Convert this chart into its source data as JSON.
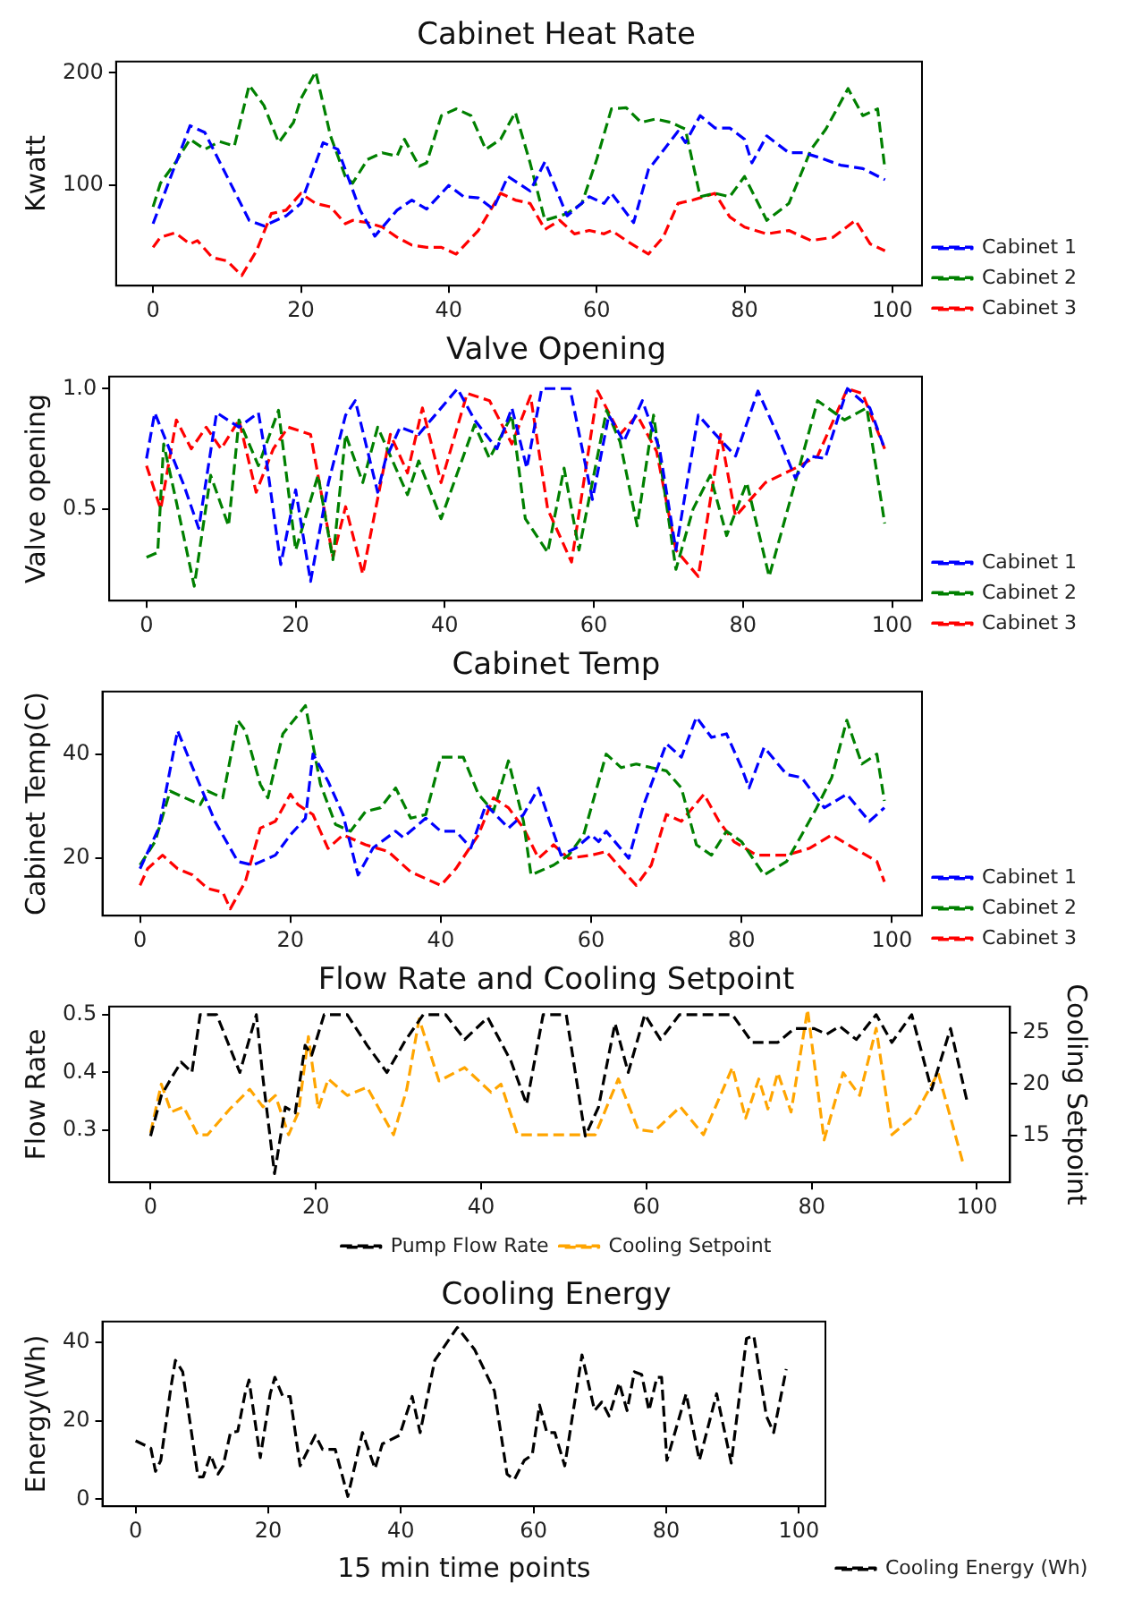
{
  "chart_data": [
    {
      "type": "line",
      "title": "Cabinet Heat Rate",
      "ylabel": "Kwatt",
      "xlim": [
        -5,
        104
      ],
      "xticks": [
        0,
        20,
        40,
        60,
        80,
        100
      ],
      "ylim": [
        11,
        210
      ],
      "yticks": [
        100,
        200
      ],
      "line_style": "dashed",
      "legend": "bottom right",
      "series": [
        {
          "name": "Cabinet 1",
          "color": "#0000ff",
          "x": [
            0,
            5,
            7,
            10,
            13,
            15,
            18,
            20,
            23,
            25,
            28,
            30,
            33,
            35,
            37,
            40,
            42,
            44,
            46,
            48,
            51,
            53,
            56,
            59,
            61,
            62,
            65,
            67,
            71,
            72,
            74,
            76,
            78,
            80,
            81,
            83,
            86,
            88,
            90,
            93,
            96,
            99
          ],
          "values": [
            66,
            153,
            147,
            108,
            69,
            64,
            73,
            84,
            138,
            132,
            78,
            55,
            78,
            87,
            79,
            100,
            90,
            89,
            79,
            108,
            95,
            121,
            73,
            90,
            84,
            93,
            67,
            114,
            148,
            138,
            162,
            151,
            151,
            141,
            120,
            144,
            129,
            129,
            125,
            118,
            115,
            105
          ]
        },
        {
          "name": "Cabinet 2",
          "color": "#008000",
          "x": [
            0,
            1,
            3,
            5,
            7,
            9,
            11,
            13,
            15,
            17,
            19,
            20,
            22,
            24,
            26,
            27,
            29,
            31,
            33,
            34,
            36,
            37,
            39,
            41,
            43,
            45,
            47,
            49,
            51,
            53,
            56,
            58,
            60,
            62,
            64,
            66,
            68,
            70,
            72,
            74,
            76,
            78,
            80,
            83,
            86,
            89,
            91,
            94,
            96,
            98,
            99
          ],
          "values": [
            81,
            102,
            120,
            141,
            132,
            139,
            135,
            189,
            171,
            138,
            156,
            177,
            201,
            144,
            108,
            102,
            123,
            129,
            126,
            141,
            117,
            120,
            162,
            168,
            162,
            132,
            141,
            165,
            120,
            69,
            75,
            84,
            123,
            168,
            169,
            156,
            159,
            156,
            150,
            90,
            93,
            90,
            108,
            69,
            84,
            132,
            150,
            186,
            162,
            168,
            114
          ]
        },
        {
          "name": "Cabinet 3",
          "color": "#ff0000",
          "x": [
            0,
            1,
            3,
            5,
            6,
            8,
            10,
            12,
            14,
            16,
            18,
            20,
            22,
            24,
            26,
            27,
            29,
            31,
            33,
            35,
            37,
            39,
            41,
            44,
            47,
            49,
            51,
            53,
            55,
            57,
            59,
            61,
            62,
            64,
            67,
            69,
            71,
            73,
            76,
            78,
            80,
            83,
            86,
            89,
            92,
            95,
            97,
            99
          ],
          "values": [
            45,
            54,
            58,
            48,
            51,
            36,
            33,
            20,
            42,
            75,
            78,
            93,
            84,
            81,
            66,
            69,
            67,
            63,
            54,
            47,
            45,
            45,
            39,
            60,
            93,
            87,
            84,
            61,
            69,
            57,
            60,
            57,
            60,
            51,
            39,
            54,
            84,
            87,
            93,
            72,
            63,
            57,
            60,
            51,
            54,
            69,
            48,
            42
          ]
        }
      ]
    },
    {
      "type": "line",
      "title": "Valve Opening",
      "ylabel": "Valve opening",
      "xlim": [
        -5,
        104
      ],
      "xticks": [
        0,
        20,
        40,
        60,
        80,
        100
      ],
      "ylim": [
        0.12,
        1.05
      ],
      "yticks": [
        0.5,
        {
          "value": 1,
          "label": "1.0"
        }
      ],
      "line_style": "dashed",
      "legend": "bottom right",
      "series": [
        {
          "name": "Cabinet 1",
          "color": "#0000ff",
          "x": [
            0,
            1.1,
            5,
            7,
            9.4,
            12.4,
            15,
            16,
            18,
            20,
            22,
            24.4,
            26.7,
            28,
            31,
            32,
            34,
            36.5,
            38.7,
            41.7,
            44,
            47,
            49,
            51,
            53,
            56.8,
            59.8,
            62,
            64,
            66.5,
            68.8,
            71,
            74,
            76.3,
            79,
            82,
            84.6,
            87,
            89,
            91,
            94,
            97,
            99
          ],
          "values": [
            0.71,
            0.9,
            0.6,
            0.42,
            0.9,
            0.84,
            0.9,
            0.72,
            0.27,
            0.58,
            0.2,
            0.61,
            0.89,
            0.95,
            0.57,
            0.7,
            0.84,
            0.81,
            0.89,
            1.0,
            0.87,
            0.75,
            0.92,
            0.67,
            1.0,
            1.0,
            0.54,
            0.89,
            0.78,
            0.95,
            0.75,
            0.33,
            0.89,
            0.81,
            0.72,
            0.99,
            0.81,
            0.63,
            0.72,
            0.71,
            1.0,
            0.92,
            0.75
          ]
        },
        {
          "name": "Cabinet 2",
          "color": "#008000",
          "x": [
            0,
            1.5,
            2.3,
            4,
            6.4,
            8.6,
            11,
            12.4,
            15,
            17.7,
            20,
            23,
            25,
            26.7,
            29,
            31,
            35,
            36.5,
            39.5,
            44,
            46,
            49,
            50.8,
            53.8,
            56,
            58,
            61.7,
            63.5,
            65.8,
            68,
            71,
            73.3,
            75.6,
            77.8,
            80.5,
            83.5,
            86,
            90,
            93.6,
            96.6,
            99
          ],
          "values": [
            0.3,
            0.32,
            0.77,
            0.53,
            0.18,
            0.64,
            0.43,
            0.87,
            0.68,
            0.91,
            0.33,
            0.64,
            0.29,
            0.81,
            0.61,
            0.84,
            0.56,
            0.7,
            0.46,
            0.85,
            0.71,
            0.89,
            0.46,
            0.32,
            0.67,
            0.33,
            0.91,
            0.78,
            0.43,
            0.89,
            0.25,
            0.5,
            0.64,
            0.39,
            0.61,
            0.22,
            0.5,
            0.95,
            0.87,
            0.92,
            0.44
          ]
        },
        {
          "name": "Cabinet 3",
          "color": "#ff0000",
          "x": [
            0,
            1.9,
            4,
            6,
            8,
            10,
            12.4,
            14.7,
            17,
            19,
            22,
            25,
            26.7,
            29,
            32.7,
            35,
            37,
            39.5,
            43,
            46,
            49,
            51.5,
            53.8,
            57,
            60.5,
            63.5,
            65.8,
            68.4,
            71,
            74,
            77,
            79,
            83,
            87,
            90,
            94,
            96,
            99
          ],
          "values": [
            0.68,
            0.5,
            0.87,
            0.75,
            0.84,
            0.75,
            0.87,
            0.57,
            0.75,
            0.84,
            0.81,
            0.3,
            0.51,
            0.23,
            0.81,
            0.65,
            0.92,
            0.61,
            0.98,
            0.95,
            0.77,
            0.97,
            0.5,
            0.28,
            0.99,
            0.81,
            0.89,
            0.74,
            0.33,
            0.22,
            0.81,
            0.47,
            0.61,
            0.67,
            0.72,
            1.0,
            0.98,
            0.75
          ]
        }
      ]
    },
    {
      "type": "line",
      "title": "Cabinet Temp",
      "ylabel": "Cabinet Temp(C)",
      "xlim": [
        -5,
        104
      ],
      "xticks": [
        0,
        20,
        40,
        60,
        80,
        100
      ],
      "ylim": [
        9,
        52
      ],
      "yticks": [
        20,
        40
      ],
      "line_style": "dashed",
      "legend": "bottom right",
      "series": [
        {
          "name": "Cabinet 1",
          "color": "#0000ff",
          "x": [
            0,
            2.5,
            5,
            7,
            10,
            13,
            15,
            18,
            20,
            22,
            23,
            25,
            27,
            29,
            31,
            34,
            35,
            38,
            40,
            42,
            44,
            46,
            49,
            51,
            53,
            56,
            58,
            60,
            61,
            62,
            65,
            67,
            70,
            72,
            74,
            76,
            78,
            80,
            81,
            83,
            86,
            88,
            91,
            94,
            97,
            99
          ],
          "values": [
            18,
            25.8,
            44.5,
            37.4,
            27,
            19.4,
            18.7,
            20.6,
            24.5,
            27.7,
            40,
            34.8,
            28.4,
            16.8,
            22,
            25.2,
            24,
            27.7,
            25.2,
            25.2,
            22,
            30.3,
            25.8,
            28.4,
            33.5,
            20.6,
            22,
            24.5,
            23.2,
            25.2,
            20,
            30.3,
            42,
            39.4,
            47.1,
            43.2,
            43.9,
            37.4,
            33.5,
            41.3,
            36.1,
            35.5,
            29.7,
            32.3,
            27.1,
            29.7
          ]
        },
        {
          "name": "Cabinet 2",
          "color": "#008000",
          "x": [
            0,
            2,
            4,
            6,
            8,
            9,
            11,
            13,
            14,
            16,
            17,
            19,
            22,
            24,
            26,
            28,
            30,
            32,
            34,
            36,
            38,
            40,
            43,
            45,
            47,
            49,
            51,
            52,
            55,
            57,
            59,
            62,
            64,
            66,
            68,
            70,
            72,
            74,
            76,
            78,
            80,
            83,
            86,
            88,
            90,
            92,
            94,
            96,
            98,
            99
          ],
          "values": [
            18.7,
            23.2,
            32.9,
            31.6,
            30.3,
            32.9,
            31.6,
            46.5,
            44.5,
            34.2,
            31.6,
            43.9,
            49.3,
            34.2,
            26.5,
            25.2,
            29,
            29.7,
            33.5,
            27.7,
            28.4,
            39.4,
            39.4,
            32.3,
            29,
            38.7,
            27.1,
            16.8,
            18.7,
            20.6,
            24.5,
            40,
            37.4,
            38.1,
            37.4,
            36.8,
            33.5,
            22.6,
            20.6,
            25.2,
            23.2,
            16.8,
            19.4,
            24.5,
            29.7,
            35.5,
            46.5,
            38.1,
            40,
            31
          ]
        },
        {
          "name": "Cabinet 3",
          "color": "#ff0000",
          "x": [
            0,
            1,
            3,
            5,
            7,
            9,
            11,
            12,
            14,
            16,
            18,
            20,
            21,
            23,
            25,
            27,
            30,
            33,
            36,
            40,
            42,
            45,
            47,
            49,
            51,
            53,
            55,
            57,
            60,
            62,
            64,
            66,
            68,
            70,
            72,
            75,
            77,
            79,
            82,
            86,
            89,
            92,
            95,
            98,
            99
          ],
          "values": [
            14.8,
            18,
            20.6,
            18,
            16.8,
            14.2,
            13.5,
            10.3,
            15.5,
            25.8,
            27.1,
            32.3,
            30.3,
            28.4,
            21.9,
            24.5,
            22.6,
            21.3,
            17.4,
            14.8,
            18,
            24.5,
            31.6,
            29.7,
            25.8,
            20,
            22.6,
            20,
            20.6,
            21.3,
            18,
            14.8,
            18.7,
            28.4,
            27.1,
            32.3,
            27.1,
            23.2,
            20.6,
            20.6,
            21.9,
            24.5,
            21.9,
            19.4,
            15.5
          ]
        }
      ]
    },
    {
      "type": "line",
      "title": "Flow Rate and Cooling Setpoint",
      "ylabel": "Flow Rate",
      "y2label": "Cooling Setpoint",
      "xlim": [
        -5,
        104
      ],
      "xticks": [
        0,
        20,
        40,
        60,
        80,
        100
      ],
      "ylim": [
        0.21,
        0.514
      ],
      "yticks": [
        0.3,
        0.4,
        0.5
      ],
      "y2lim": [
        10.5,
        27.5
      ],
      "y2ticks": [
        15,
        20,
        25
      ],
      "line_style": "dashed",
      "legend": "bottom",
      "series": [
        {
          "name": "Pump Flow Rate",
          "color": "#000000",
          "x": [
            0,
            1.3,
            2.5,
            3.7,
            5,
            6,
            8,
            10.8,
            12.8,
            13.6,
            15,
            16.3,
            17.5,
            18.7,
            19.5,
            21,
            23.8,
            26.2,
            28.6,
            30.9,
            33,
            35.7,
            38,
            40.8,
            43.6,
            45.5,
            47.5,
            50.3,
            52.6,
            54.2,
            56.2,
            57.8,
            59.8,
            61.7,
            64,
            70.4,
            72.8,
            75.9,
            77.9,
            80.3,
            81.8,
            83.4,
            85.4,
            87.8,
            89.7,
            92.1,
            94.5,
            96.8,
            98.8
          ],
          "values": [
            0.29,
            0.36,
            0.39,
            0.418,
            0.4,
            0.5,
            0.5,
            0.4,
            0.5,
            0.39,
            0.225,
            0.34,
            0.33,
            0.447,
            0.43,
            0.5,
            0.5,
            0.447,
            0.4,
            0.457,
            0.5,
            0.5,
            0.457,
            0.495,
            0.42,
            0.345,
            0.5,
            0.5,
            0.29,
            0.34,
            0.485,
            0.4,
            0.5,
            0.457,
            0.5,
            0.5,
            0.452,
            0.452,
            0.476,
            0.476,
            0.466,
            0.48,
            0.457,
            0.5,
            0.452,
            0.5,
            0.37,
            0.476,
            0.35
          ]
        },
        {
          "name": "Cooling Setpoint",
          "color": "#ffa500",
          "axis": "y2",
          "x": [
            0,
            1.3,
            2.5,
            4,
            5.7,
            6.9,
            9.6,
            12,
            13.6,
            15.1,
            16.7,
            17.9,
            19.1,
            20.3,
            21.5,
            23.8,
            26.2,
            29.4,
            31,
            32.5,
            34.9,
            38,
            41.2,
            42.4,
            44.4,
            48.3,
            53.8,
            56.6,
            59,
            60.9,
            64.1,
            66.9,
            70.4,
            72,
            73.6,
            74.7,
            75.9,
            77.5,
            79.5,
            81.5,
            83.8,
            85.8,
            87.8,
            89.7,
            92.5,
            95.3,
            98.4
          ],
          "values": [
            15.3,
            20,
            17.3,
            17.8,
            15.1,
            15.1,
            17.6,
            19.5,
            17.8,
            18.9,
            15.1,
            17.3,
            24.6,
            17.6,
            20.5,
            18.9,
            19.7,
            15.1,
            19.5,
            26.3,
            20.3,
            21.6,
            19.2,
            20,
            15.1,
            15.1,
            15.1,
            20.5,
            15.6,
            15.4,
            17.8,
            15.1,
            21.6,
            16.7,
            20.5,
            17.6,
            21.1,
            17.3,
            27.2,
            14.6,
            21.1,
            18.9,
            25.4,
            15.1,
            17,
            21.1,
            12.1
          ]
        }
      ]
    },
    {
      "type": "line",
      "title": "Cooling Energy",
      "xlabel": "15 min time points",
      "ylabel": "Energy(Wh)",
      "xlim": [
        -5,
        104
      ],
      "xticks": [
        0,
        20,
        40,
        60,
        80,
        100
      ],
      "ylim": [
        -1.8,
        45.3
      ],
      "yticks": [
        0,
        20,
        40
      ],
      "line_style": "dashed",
      "legend": "bottom right",
      "series": [
        {
          "name": "Cooling Energy (Wh)",
          "color": "#000000",
          "x": [
            0,
            2.3,
            3,
            3.8,
            5.3,
            6,
            7.1,
            9.4,
            10.2,
            11.3,
            12.4,
            13.2,
            14.3,
            15.4,
            16.5,
            17.1,
            18.8,
            20.3,
            21,
            22.2,
            23.3,
            24.8,
            27.1,
            28.2,
            30.1,
            32,
            34.2,
            36.1,
            37.2,
            39.8,
            41.7,
            42.9,
            45.1,
            48.5,
            51.1,
            54.1,
            56,
            57.1,
            58.6,
            59.8,
            60.9,
            62,
            63.2,
            64.7,
            67.3,
            69.2,
            70.3,
            71.4,
            72.9,
            74.1,
            75.2,
            76.3,
            77.4,
            78.6,
            79.3,
            80.1,
            83,
            85,
            87.6,
            89.8,
            92.1,
            93.2,
            95.1,
            96.2,
            98.1
          ],
          "values": [
            14.9,
            13,
            7.1,
            9.9,
            28.3,
            35.4,
            32.5,
            5.7,
            5.7,
            11.3,
            6.4,
            8.5,
            17,
            17.3,
            26.9,
            30.4,
            10.6,
            26.9,
            31.1,
            26.2,
            26.2,
            8.5,
            16.3,
            12.7,
            12.7,
            0.7,
            17,
            7.8,
            14.1,
            16.3,
            26.2,
            17,
            35.4,
            43.8,
            38.2,
            27.6,
            6.4,
            5,
            9.9,
            11.3,
            24,
            17,
            17,
            8.5,
            36.8,
            22.6,
            24.8,
            21.2,
            29.7,
            22.6,
            32.5,
            31.8,
            22.6,
            31.1,
            31.1,
            9.9,
            26.9,
            9.9,
            26.9,
            9.2,
            41,
            41.7,
            21.2,
            17,
            33.2
          ]
        }
      ]
    }
  ]
}
